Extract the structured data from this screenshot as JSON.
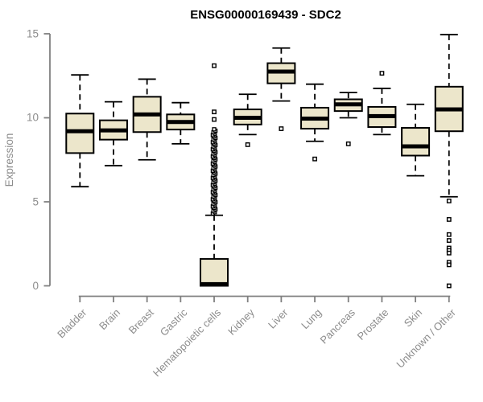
{
  "chart_data": {
    "type": "boxplot",
    "title": "ENSG00000169439 - SDC2",
    "ylabel": "Expression",
    "xlabel": "",
    "ylim": [
      0,
      15
    ],
    "yticks": [
      0,
      5,
      10,
      15
    ],
    "grid": false,
    "legend": null,
    "categories": [
      "Bladder",
      "Brain",
      "Breast",
      "Gastric",
      "Hematopoietic cells",
      "Kidney",
      "Liver",
      "Lung",
      "Pancreas",
      "Prostate",
      "Skin",
      "Unknown / Other"
    ],
    "series": [
      {
        "category": "Bladder",
        "whisker_low": 5.9,
        "q1": 7.9,
        "median": 9.2,
        "q3": 10.25,
        "whisker_high": 12.55,
        "outliers": []
      },
      {
        "category": "Brain",
        "whisker_low": 7.15,
        "q1": 8.7,
        "median": 9.25,
        "q3": 9.85,
        "whisker_high": 10.95,
        "outliers": []
      },
      {
        "category": "Breast",
        "whisker_low": 7.5,
        "q1": 9.15,
        "median": 10.2,
        "q3": 11.25,
        "whisker_high": 12.3,
        "outliers": []
      },
      {
        "category": "Gastric",
        "whisker_low": 8.45,
        "q1": 9.3,
        "median": 9.75,
        "q3": 10.2,
        "whisker_high": 10.9,
        "outliers": []
      },
      {
        "category": "Hematopoietic cells",
        "whisker_low": 0,
        "q1": 0,
        "median": 0.1,
        "q3": 1.6,
        "whisker_high": 4.2,
        "outliers": [
          13.1,
          10.35,
          9.9
        ],
        "outlier_band": {
          "from": 4.3,
          "to": 9.4,
          "step": 0.085
        }
      },
      {
        "category": "Kidney",
        "whisker_low": 9.0,
        "q1": 9.6,
        "median": 10.0,
        "q3": 10.5,
        "whisker_high": 11.4,
        "outliers": [
          8.4
        ]
      },
      {
        "category": "Liver",
        "whisker_low": 11.0,
        "q1": 12.05,
        "median": 12.75,
        "q3": 13.25,
        "whisker_high": 14.15,
        "outliers": [
          9.35
        ]
      },
      {
        "category": "Lung",
        "whisker_low": 8.6,
        "q1": 9.35,
        "median": 9.95,
        "q3": 10.6,
        "whisker_high": 12.0,
        "outliers": [
          7.55
        ]
      },
      {
        "category": "Pancreas",
        "whisker_low": 10.0,
        "q1": 10.4,
        "median": 10.8,
        "q3": 11.1,
        "whisker_high": 11.5,
        "outliers": [
          8.45
        ]
      },
      {
        "category": "Prostate",
        "whisker_low": 9.0,
        "q1": 9.45,
        "median": 10.1,
        "q3": 10.65,
        "whisker_high": 11.75,
        "outliers": [
          12.65
        ]
      },
      {
        "category": "Skin",
        "whisker_low": 6.55,
        "q1": 7.75,
        "median": 8.3,
        "q3": 9.4,
        "whisker_high": 10.8,
        "outliers": []
      },
      {
        "category": "Unknown / Other",
        "whisker_low": 5.3,
        "q1": 9.2,
        "median": 10.5,
        "q3": 11.85,
        "whisker_high": 14.95,
        "outliers": [
          5.05,
          3.95,
          3.05,
          2.7,
          2.25,
          2.1,
          1.95,
          1.4,
          1.25,
          0.0
        ]
      }
    ],
    "colors": {
      "box_fill": "#ECE6CB",
      "box_border": "#000000",
      "median": "#000000",
      "whisker": "#000000",
      "outlier_stroke": "#000000",
      "outlier_fill": "#FFFFFF",
      "axis": "#808080",
      "tick_label": "#8C8C8C",
      "title": "#000000",
      "background": "#FFFFFF"
    }
  }
}
